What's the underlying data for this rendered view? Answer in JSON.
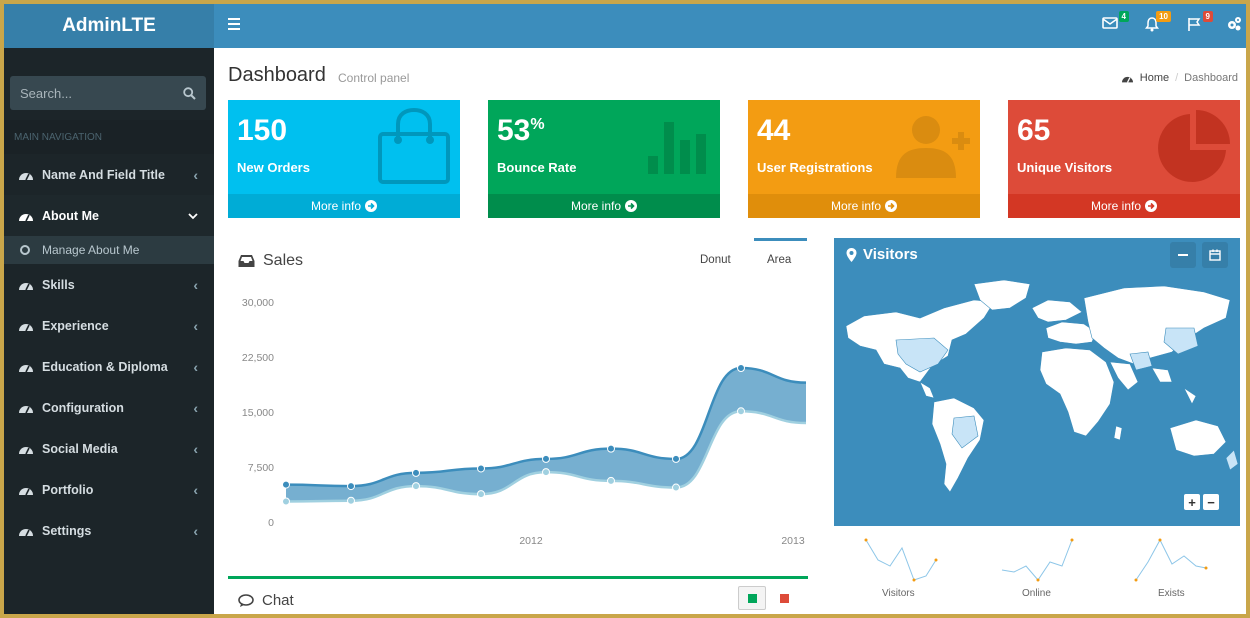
{
  "brand": "AdminLTE",
  "search": {
    "placeholder": "Search..."
  },
  "sidebar": {
    "header": "MAIN NAVIGATION",
    "items": [
      {
        "label": "Name And Field Title",
        "icon": "dashboard-icon"
      },
      {
        "label": "About Me",
        "icon": "dashboard-icon"
      },
      {
        "label": "Skills",
        "icon": "dashboard-icon"
      },
      {
        "label": "Experience",
        "icon": "dashboard-icon"
      },
      {
        "label": "Education & Diploma",
        "icon": "dashboard-icon"
      },
      {
        "label": "Configuration",
        "icon": "dashboard-icon"
      },
      {
        "label": "Social Media",
        "icon": "dashboard-icon"
      },
      {
        "label": "Portfolio",
        "icon": "dashboard-icon"
      },
      {
        "label": "Settings",
        "icon": "dashboard-icon"
      }
    ],
    "submenu": {
      "label": "Manage About Me"
    }
  },
  "topbar": {
    "mail_badge": "4",
    "bell_badge": "10",
    "flag_badge": "9"
  },
  "page": {
    "title": "Dashboard",
    "subtitle": "Control panel",
    "breadcrumb_home": "Home",
    "breadcrumb_current": "Dashboard"
  },
  "info_boxes": [
    {
      "value": "150",
      "suffix": "",
      "label": "New Orders",
      "more": "More info",
      "color": "#00c0ef"
    },
    {
      "value": "53",
      "suffix": "%",
      "label": "Bounce Rate",
      "more": "More info",
      "color": "#00a65a"
    },
    {
      "value": "44",
      "suffix": "",
      "label": "User Registrations",
      "more": "More info",
      "color": "#f39c12"
    },
    {
      "value": "65",
      "suffix": "",
      "label": "Unique Visitors",
      "more": "More info",
      "color": "#dd4b39"
    }
  ],
  "sales": {
    "title": "Sales",
    "tabs": [
      "Donut",
      "Area"
    ]
  },
  "chart_data": {
    "type": "area",
    "title": "Sales",
    "ylim": [
      0,
      30000
    ],
    "yticks": [
      "30,000",
      "22,500",
      "15,000",
      "7,500",
      "0"
    ],
    "xticks": [
      "2012",
      "2013"
    ],
    "series": [
      {
        "name": "",
        "values": [
          5100,
          4900,
          6700,
          7300,
          8600,
          10000,
          8600,
          21000,
          19000
        ]
      },
      {
        "name": "",
        "values": [
          2800,
          2900,
          4900,
          3800,
          6800,
          5600,
          4700,
          15100,
          13500
        ]
      }
    ]
  },
  "visitors": {
    "title": "Visitors"
  },
  "sparklines": [
    "Visitors",
    "Online",
    "Exists"
  ],
  "chat": {
    "title": "Chat"
  }
}
